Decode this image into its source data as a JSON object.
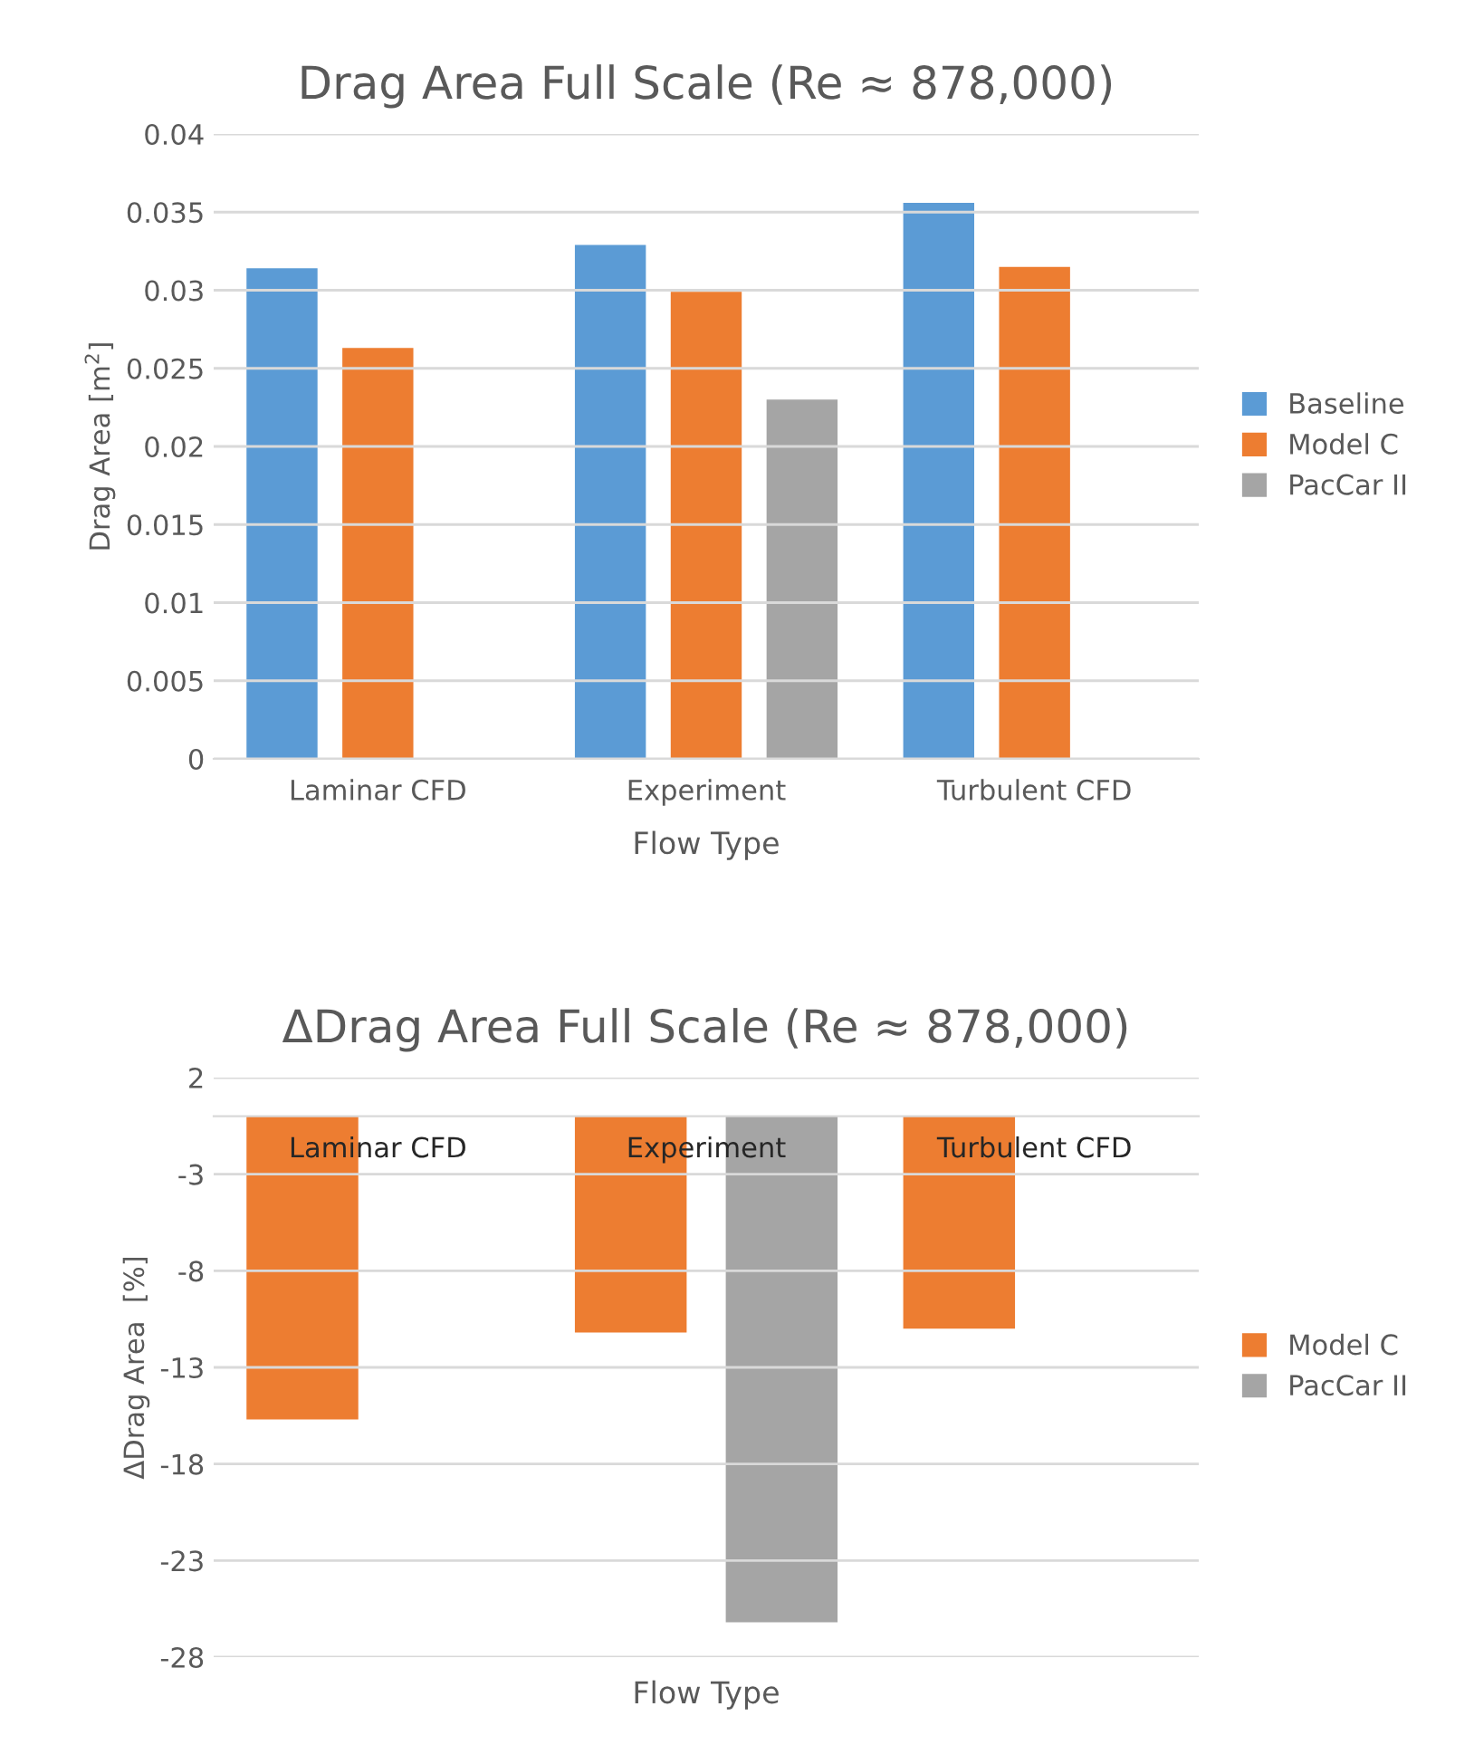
{
  "chart_data": [
    {
      "type": "bar",
      "title": "Drag Area Full Scale (Re ≈ 878,000)",
      "xlabel": "Flow Type",
      "ylabel": "Drag Area [m$^{2}$]",
      "categories": [
        "Laminar CFD",
        "Experiment",
        "Turbulent CFD"
      ],
      "series": [
        {
          "name": "Baseline",
          "color": "#5b9bd5",
          "values": [
            0.0314,
            0.0329,
            0.0356
          ]
        },
        {
          "name": "Model C",
          "color": "#ed7d31",
          "values": [
            0.0263,
            0.0299,
            0.0315
          ]
        },
        {
          "name": "PacCar II",
          "color": "#a5a5a5",
          "values": [
            null,
            0.023,
            null
          ]
        }
      ],
      "ylim": [
        0,
        0.04
      ],
      "yticks": [
        0,
        0.005,
        0.01,
        0.015,
        0.02,
        0.025,
        0.03,
        0.035,
        0.04
      ],
      "grid": "y",
      "legend": "right"
    },
    {
      "type": "bar",
      "title": "ΔDrag Area Full Scale (Re ≈ 878,000)",
      "xlabel": "Flow Type",
      "ylabel": "ΔDrag Area  [%]",
      "categories": [
        "Laminar CFD",
        "Experiment",
        "Turbulent CFD"
      ],
      "series": [
        {
          "name": "Model C",
          "color": "#ed7d31",
          "values": [
            -15.7,
            -11.2,
            -11.0
          ]
        },
        {
          "name": "PacCar II",
          "color": "#a5a5a5",
          "values": [
            null,
            -26.2,
            null
          ]
        }
      ],
      "ylim": [
        -28,
        2
      ],
      "yticks": [
        2,
        -3,
        -8,
        -13,
        -18,
        -23,
        -28
      ],
      "grid": "y",
      "legend": "right"
    }
  ]
}
